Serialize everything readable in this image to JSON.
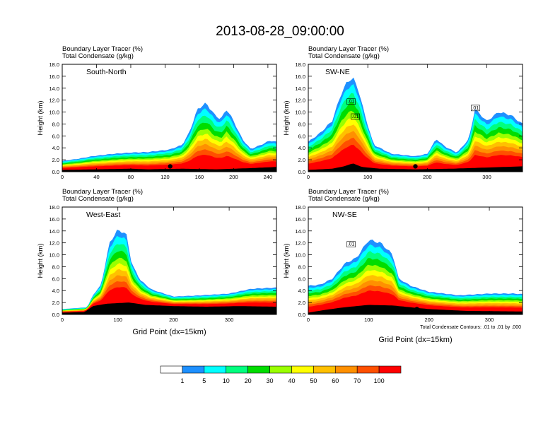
{
  "figure": {
    "title": "2013-08-28_09:00:00",
    "x_axis_label": "Grid Point (dx=15km)",
    "contour_note": "Total Condensate Contours: .01 to .01 by .000"
  },
  "colorbar": {
    "labels": [
      "1",
      "5",
      "10",
      "20",
      "30",
      "40",
      "50",
      "60",
      "70",
      "100"
    ],
    "colors": [
      "#ffffff",
      "#1e90ff",
      "#00ffff",
      "#00ff7f",
      "#00dd00",
      "#9aff00",
      "#ffff00",
      "#ffc000",
      "#ff9000",
      "#ff5000",
      "#ff0000"
    ]
  },
  "chart_data": [
    {
      "type": "heatmap",
      "panel": "south-north",
      "title_line1": "Boundary Layer Tracer   (%)",
      "title_line2": "Total Condensate   (g/kg)",
      "section_label": "South-North",
      "ylabel": "Height (km)",
      "xlim": [
        0,
        250
      ],
      "ylim": [
        0,
        18
      ],
      "x_ticks": [
        "0",
        "40",
        "80",
        "120",
        "160",
        "200",
        "240"
      ],
      "y_ticks": [
        "0.0",
        "2.0",
        "4.0",
        "6.0",
        "8.0",
        "10.0",
        "12.0",
        "14.0",
        "16.0",
        "18.0"
      ],
      "marker_x": 126,
      "terrain": [
        [
          0,
          0.3
        ],
        [
          40,
          0.4
        ],
        [
          80,
          0.5
        ],
        [
          100,
          0.4
        ],
        [
          140,
          0.5
        ],
        [
          180,
          0.4
        ],
        [
          220,
          0.6
        ],
        [
          250,
          0.8
        ]
      ],
      "tracer_top_km": [
        [
          0,
          1.8
        ],
        [
          20,
          2.2
        ],
        [
          35,
          2.6
        ],
        [
          60,
          3.0
        ],
        [
          80,
          3.2
        ],
        [
          100,
          3.3
        ],
        [
          125,
          3.7
        ],
        [
          140,
          4.5
        ],
        [
          148,
          6.5
        ],
        [
          158,
          10.5
        ],
        [
          168,
          11.5
        ],
        [
          178,
          9.5
        ],
        [
          185,
          8.8
        ],
        [
          192,
          10.5
        ],
        [
          200,
          8.5
        ],
        [
          210,
          5.5
        ],
        [
          220,
          3.8
        ],
        [
          232,
          4.5
        ],
        [
          242,
          5.2
        ],
        [
          250,
          5.0
        ]
      ],
      "cloud_contour_km": []
    },
    {
      "type": "heatmap",
      "panel": "sw-ne",
      "title_line1": "Boundary Layer Tracer   (%)",
      "title_line2": "Total Condensate   (g/kg)",
      "section_label": "SW-NE",
      "ylabel": "Height (km)",
      "xlim": [
        0,
        360
      ],
      "ylim": [
        0,
        18
      ],
      "x_ticks": [
        "0",
        "100",
        "200",
        "300"
      ],
      "y_ticks": [
        "0.0",
        "2.0",
        "4.0",
        "6.0",
        "8.0",
        "10.0",
        "12.0",
        "14.0",
        "16.0",
        "18.0"
      ],
      "marker_x": 180,
      "contour_labels": [
        ".01",
        ".01",
        ".01"
      ],
      "terrain": [
        [
          0,
          0.3
        ],
        [
          40,
          0.5
        ],
        [
          60,
          0.9
        ],
        [
          75,
          1.4
        ],
        [
          90,
          0.8
        ],
        [
          120,
          0.5
        ],
        [
          180,
          0.4
        ],
        [
          240,
          0.5
        ],
        [
          300,
          0.7
        ],
        [
          360,
          0.9
        ]
      ],
      "tracer_top_km": [
        [
          0,
          5.0
        ],
        [
          20,
          6.5
        ],
        [
          40,
          8.5
        ],
        [
          55,
          13.0
        ],
        [
          65,
          15.0
        ],
        [
          75,
          15.8
        ],
        [
          85,
          13.5
        ],
        [
          95,
          9.5
        ],
        [
          110,
          4.5
        ],
        [
          140,
          3.0
        ],
        [
          180,
          2.6
        ],
        [
          200,
          3.0
        ],
        [
          215,
          5.5
        ],
        [
          230,
          4.2
        ],
        [
          250,
          3.2
        ],
        [
          270,
          5.5
        ],
        [
          280,
          10.5
        ],
        [
          300,
          8.5
        ],
        [
          320,
          10.0
        ],
        [
          340,
          9.5
        ],
        [
          360,
          8.0
        ]
      ],
      "cloud_contour_km": []
    },
    {
      "type": "heatmap",
      "panel": "west-east",
      "title_line1": "Boundary Layer Tracer   (%)",
      "title_line2": "Total Condensate   (g/kg)",
      "section_label": "West-East",
      "ylabel": "Height (km)",
      "xlim": [
        0,
        385
      ],
      "ylim": [
        0,
        18
      ],
      "x_ticks": [
        "0",
        "100",
        "200",
        "300"
      ],
      "y_ticks": [
        "0.0",
        "2.0",
        "4.0",
        "6.0",
        "8.0",
        "10.0",
        "12.0",
        "14.0",
        "16.0",
        "18.0"
      ],
      "marker_x": 190,
      "terrain": [
        [
          0,
          0.3
        ],
        [
          40,
          0.4
        ],
        [
          55,
          1.4
        ],
        [
          80,
          1.8
        ],
        [
          120,
          2.0
        ],
        [
          150,
          1.6
        ],
        [
          200,
          1.4
        ],
        [
          260,
          1.3
        ],
        [
          320,
          1.4
        ],
        [
          385,
          1.3
        ]
      ],
      "tracer_top_km": [
        [
          0,
          0.9
        ],
        [
          45,
          1.2
        ],
        [
          55,
          3.2
        ],
        [
          70,
          5.0
        ],
        [
          85,
          12.0
        ],
        [
          100,
          14.2
        ],
        [
          115,
          13.5
        ],
        [
          125,
          8.5
        ],
        [
          140,
          5.8
        ],
        [
          160,
          4.2
        ],
        [
          200,
          3.0
        ],
        [
          250,
          3.2
        ],
        [
          300,
          3.5
        ],
        [
          340,
          4.3
        ],
        [
          385,
          4.5
        ]
      ],
      "cloud_contour_km": []
    },
    {
      "type": "heatmap",
      "panel": "nw-se",
      "title_line1": "Boundary Layer Tracer   (%)",
      "title_line2": "Total Condensate   (g/kg)",
      "section_label": "NW-SE",
      "ylabel": "Height (km)",
      "xlim": [
        0,
        355
      ],
      "ylim": [
        0,
        18
      ],
      "x_ticks": [
        "0",
        "100",
        "200",
        "300"
      ],
      "y_ticks": [
        "0.0",
        "2.0",
        "4.0",
        "6.0",
        "8.0",
        "10.0",
        "12.0",
        "14.0",
        "16.0",
        "18.0"
      ],
      "marker_x": 180,
      "contour_labels": [
        ".01"
      ],
      "terrain": [
        [
          0,
          0.3
        ],
        [
          30,
          0.8
        ],
        [
          60,
          1.2
        ],
        [
          100,
          1.6
        ],
        [
          140,
          1.5
        ],
        [
          200,
          0.9
        ],
        [
          260,
          0.6
        ],
        [
          355,
          0.5
        ]
      ],
      "tracer_top_km": [
        [
          0,
          4.8
        ],
        [
          20,
          5.0
        ],
        [
          40,
          6.0
        ],
        [
          60,
          8.5
        ],
        [
          80,
          9.5
        ],
        [
          100,
          12.5
        ],
        [
          120,
          12.0
        ],
        [
          140,
          10.0
        ],
        [
          150,
          6.0
        ],
        [
          170,
          4.8
        ],
        [
          200,
          3.8
        ],
        [
          250,
          3.2
        ],
        [
          300,
          3.5
        ],
        [
          340,
          3.5
        ],
        [
          355,
          3.4
        ]
      ],
      "cloud_contour_km": []
    }
  ]
}
